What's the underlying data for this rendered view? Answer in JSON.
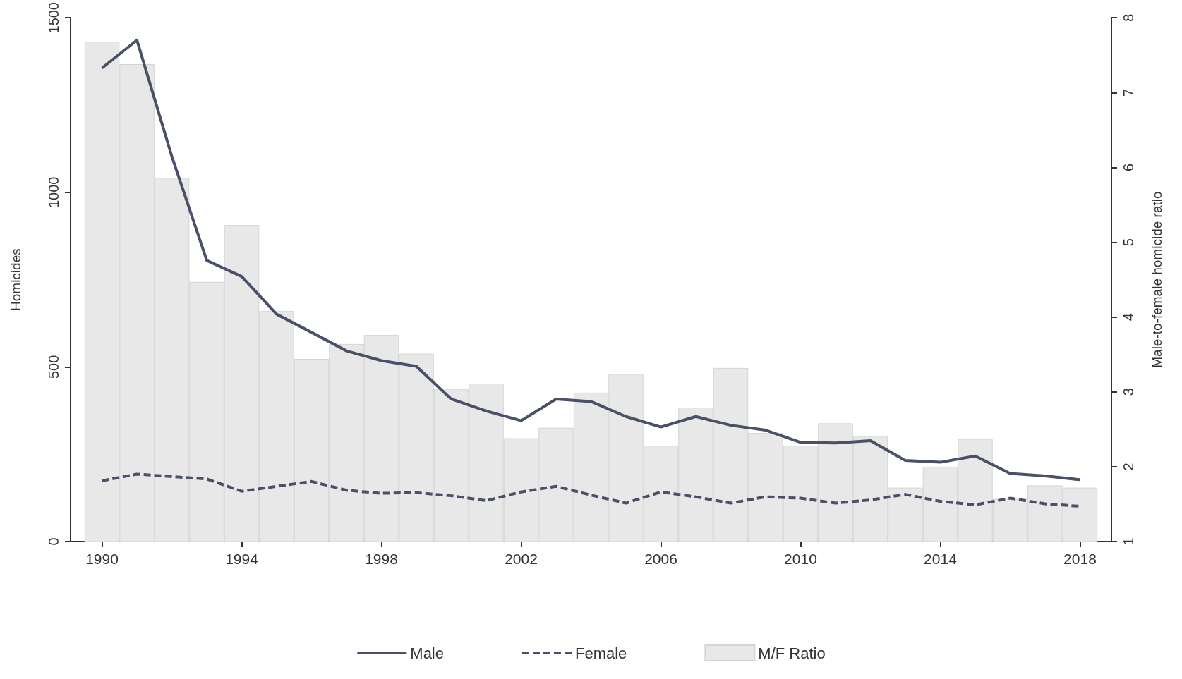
{
  "chart_data": {
    "type": "line",
    "x": [
      1990,
      1991,
      1992,
      1993,
      1994,
      1995,
      1996,
      1997,
      1998,
      1999,
      2000,
      2001,
      2002,
      2003,
      2004,
      2005,
      2006,
      2007,
      2008,
      2009,
      2010,
      2011,
      2012,
      2013,
      2014,
      2015,
      2016,
      2017,
      2018
    ],
    "xlim": [
      1989.1,
      2018.9
    ],
    "xticks": [
      1990,
      1994,
      1998,
      2002,
      2006,
      2010,
      2014,
      2018
    ],
    "ylabel": "Homicides",
    "ylim": [
      0,
      1500
    ],
    "yticks": [
      0,
      500,
      1000,
      1500
    ],
    "y2label": "Male-to-female homicide ratio",
    "y2lim": [
      1,
      8
    ],
    "y2ticks": [
      1,
      2,
      3,
      4,
      5,
      6,
      7,
      8
    ],
    "series": [
      {
        "name": "Male",
        "color": "#4a5068",
        "line_style": "solid",
        "values": [
          1356,
          1436,
          1103,
          805,
          759,
          651,
          599,
          546,
          518,
          502,
          408,
          374,
          346,
          408,
          401,
          358,
          328,
          358,
          333,
          319,
          284,
          282,
          289,
          232,
          227,
          245,
          195,
          188,
          177
        ]
      },
      {
        "name": "Female",
        "color": "#4a5068",
        "line_style": "dashed",
        "values": [
          174,
          193,
          186,
          179,
          144,
          158,
          172,
          147,
          138,
          140,
          131,
          117,
          142,
          158,
          133,
          110,
          142,
          128,
          110,
          128,
          124,
          110,
          119,
          135,
          115,
          105,
          124,
          108,
          101
        ]
      },
      {
        "name": "M/F Ratio",
        "type": "bar",
        "axis": "y2",
        "color": "#e8e8e8",
        "values": [
          7.68,
          7.38,
          5.86,
          4.47,
          5.23,
          4.08,
          3.44,
          3.64,
          3.76,
          3.51,
          3.04,
          3.11,
          2.38,
          2.52,
          2.99,
          3.24,
          2.28,
          2.79,
          3.32,
          2.45,
          2.28,
          2.58,
          2.41,
          1.72,
          2.0,
          2.37,
          1.57,
          1.75,
          1.72
        ]
      }
    ],
    "legend": "bottom",
    "grid": false,
    "marker": "none"
  }
}
